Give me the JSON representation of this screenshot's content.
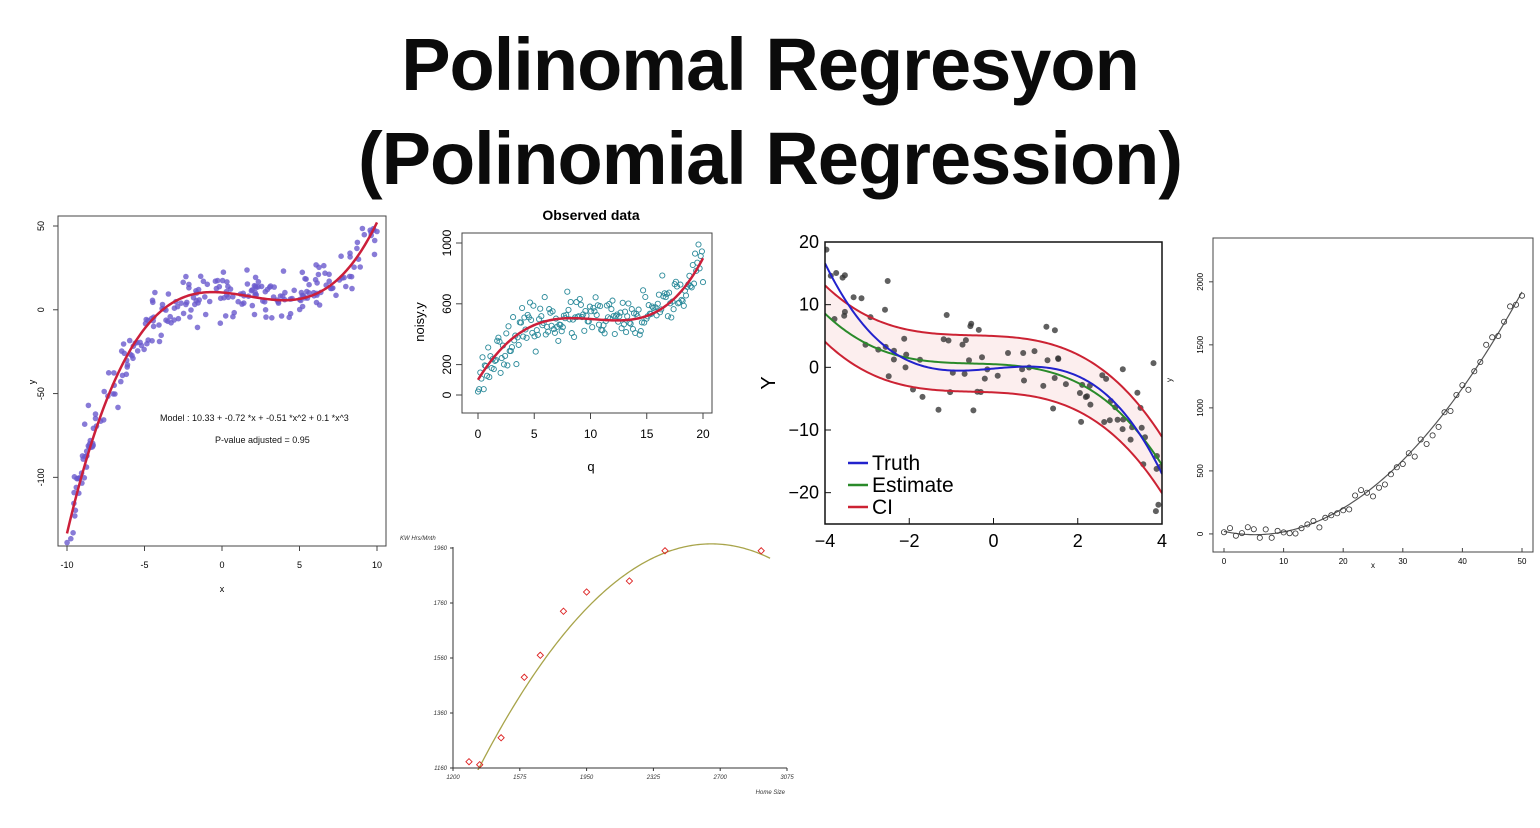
{
  "page": {
    "title_line1": "Polinomal Regresyon",
    "title_line2": "(Polinomial Regression)"
  },
  "colors": {
    "purple_points": "#6a5acd",
    "red_curve": "#cc1f3a",
    "teal_points": "#2b8a9a",
    "truth": "#2222cc",
    "estimate": "#2a8a2a",
    "ci": "#cc2233",
    "olive_curve": "#a8a44a",
    "red_marker": "#dd2222",
    "gray": "#555555"
  },
  "chart_data": [
    {
      "id": "cubic-purple",
      "type": "scatter",
      "title": "",
      "xlabel": "x",
      "ylabel": "y",
      "xlim": [
        -10,
        10
      ],
      "ylim": [
        -135,
        50
      ],
      "xticks": [
        "-10",
        "-5",
        "0",
        "5",
        "10"
      ],
      "yticks": [
        "-100",
        "-50",
        "0",
        "50"
      ],
      "annotations": [
        "Model :  10.33  +  -0.72 *x + -0.51 *x^2 + 0.1 *x^3",
        "P-value adjusted =  0.95"
      ],
      "curve": {
        "type": "polynomial",
        "coefficients": [
          10.33,
          -0.72,
          -0.51,
          0.1
        ],
        "range": [
          -10,
          10
        ]
      },
      "points": {
        "count": 250,
        "noise_sd": 8
      },
      "grid": false
    },
    {
      "id": "observed-data",
      "type": "scatter",
      "title": "Observed data",
      "xlabel": "q",
      "ylabel": "noisy.y",
      "xlim": [
        0,
        20
      ],
      "ylim": [
        0,
        1000
      ],
      "xticks": [
        "0",
        "5",
        "10",
        "15",
        "20"
      ],
      "yticks": [
        "0",
        "200",
        "600",
        "1000"
      ],
      "curve": {
        "type": "cubic",
        "through": [
          [
            0,
            100
          ],
          [
            5,
            460
          ],
          [
            10,
            500
          ],
          [
            15,
            520
          ],
          [
            20,
            900
          ]
        ]
      },
      "points": {
        "count": 200,
        "noise_sd": 70
      },
      "grid": false
    },
    {
      "id": "truth-estimate-ci",
      "type": "line",
      "title": "",
      "xlabel": "",
      "ylabel": "Y",
      "xlim": [
        -4,
        4
      ],
      "ylim": [
        -25,
        20
      ],
      "xticks": [
        "−4",
        "−2",
        "0",
        "2",
        "4"
      ],
      "yticks": [
        "20",
        "10",
        "0",
        "−10",
        "−20"
      ],
      "legend_position": "bottom-left",
      "series": [
        {
          "name": "Truth",
          "color": "#2222cc"
        },
        {
          "name": "Estimate",
          "color": "#2a8a2a"
        },
        {
          "name": "CI",
          "color": "#cc2233"
        }
      ],
      "points": {
        "count": 90,
        "noise_sd": 4
      },
      "grid": false
    },
    {
      "id": "quadratic-gray",
      "type": "scatter",
      "title": "",
      "xlabel": "x",
      "ylabel": "y",
      "xlim": [
        0,
        50
      ],
      "ylim": [
        -80,
        2300
      ],
      "xticks": [
        "0",
        "10",
        "20",
        "30",
        "40",
        "50"
      ],
      "yticks": [
        "0",
        "500",
        "1000",
        "1500",
        "2000"
      ],
      "curve": {
        "type": "quadratic",
        "through": [
          [
            0,
            20
          ],
          [
            10,
            0
          ],
          [
            20,
            190
          ],
          [
            30,
            650
          ],
          [
            40,
            1330
          ],
          [
            50,
            2260
          ]
        ]
      },
      "grid": false
    },
    {
      "id": "kwh-home-size",
      "type": "scatter",
      "title": "",
      "xlabel": "Home Size",
      "ylabel": "KW Hrs/Mnth",
      "xlim": [
        1200,
        3075
      ],
      "ylim": [
        1160,
        1960
      ],
      "xticks": [
        "1200",
        "1575",
        "1950",
        "2325",
        "2700",
        "3075"
      ],
      "yticks": [
        "1960",
        "1760",
        "1560",
        "1360",
        "1160"
      ],
      "x": [
        1290,
        1350,
        1470,
        1600,
        1690,
        1820,
        1950,
        2190,
        2390,
        2930
      ],
      "y": [
        1183,
        1172,
        1270,
        1490,
        1570,
        1730,
        1800,
        1840,
        1950,
        1950
      ],
      "curve": {
        "type": "quadratic",
        "vertex": [
          2650,
          1975
        ],
        "through": [
          1350,
          1165
        ]
      },
      "grid": false
    }
  ]
}
